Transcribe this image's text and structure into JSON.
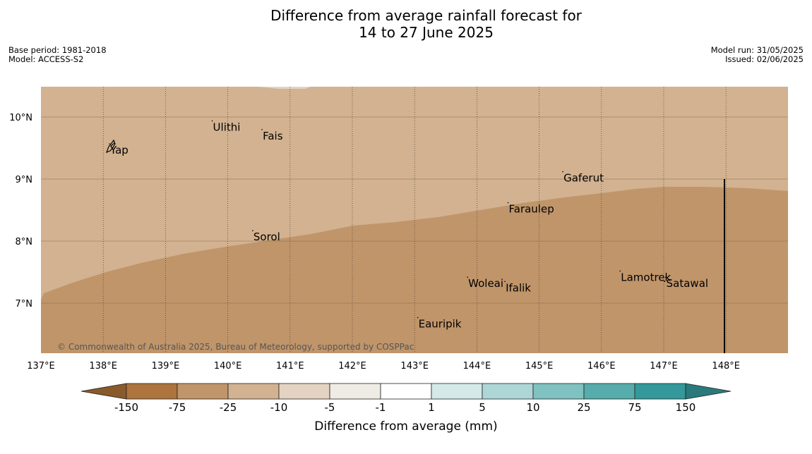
{
  "title": {
    "line1": "Difference from average rainfall forecast for",
    "line2": "14 to 27 June 2025"
  },
  "meta": {
    "base_period": "Base period: 1981-2018",
    "model": "Model: ACCESS-S2",
    "model_run": "Model run: 31/05/2025",
    "issued": "Issued: 02/06/2025"
  },
  "map": {
    "lon_range": [
      137,
      149
    ],
    "lat_range": [
      6.2,
      10.5
    ],
    "lat_ticks": [
      {
        "label": "10°N",
        "v": 10
      },
      {
        "label": "9°N",
        "v": 9
      },
      {
        "label": "8°N",
        "v": 8
      },
      {
        "label": "7°N",
        "v": 7
      }
    ],
    "lon_ticks": [
      {
        "label": "137°E",
        "v": 137
      },
      {
        "label": "138°E",
        "v": 138
      },
      {
        "label": "139°E",
        "v": 139
      },
      {
        "label": "140°E",
        "v": 140
      },
      {
        "label": "141°E",
        "v": 141
      },
      {
        "label": "142°E",
        "v": 142
      },
      {
        "label": "143°E",
        "v": 143
      },
      {
        "label": "144°E",
        "v": 144
      },
      {
        "label": "145°E",
        "v": 145
      },
      {
        "label": "146°E",
        "v": 146
      },
      {
        "label": "147°E",
        "v": 147
      },
      {
        "label": "148°E",
        "v": 148
      }
    ],
    "places": [
      {
        "name": "Ulithi",
        "lon": 139.75,
        "lat": 9.87
      },
      {
        "name": "Fais",
        "lon": 140.55,
        "lat": 9.73
      },
      {
        "name": "Yap",
        "lon": 138.1,
        "lat": 9.5
      },
      {
        "name": "Gaferut",
        "lon": 145.38,
        "lat": 9.05
      },
      {
        "name": "Faraulep",
        "lon": 144.5,
        "lat": 8.55
      },
      {
        "name": "Sorol",
        "lon": 140.4,
        "lat": 8.1
      },
      {
        "name": "Lamotrek",
        "lon": 146.3,
        "lat": 7.45
      },
      {
        "name": "Woleai",
        "lon": 143.85,
        "lat": 7.35
      },
      {
        "name": "Ifalik",
        "lon": 144.45,
        "lat": 7.28
      },
      {
        "name": "Satawal",
        "lon": 147.03,
        "lat": 7.35
      },
      {
        "name": "Eauripik",
        "lon": 143.05,
        "lat": 6.7
      }
    ],
    "copyright": "© Commonwealth of Australia 2025, Bureau of Meteorology, supported by COSPPac",
    "region_colors": {
      "minus_10_to_minus_25": "#d2b290",
      "minus_25_to_minus_75": "#c0956a"
    }
  },
  "colorbar": {
    "title": "Difference from average (mm)",
    "labels": [
      "-150",
      "-75",
      "-25",
      "-10",
      "-5",
      "-1",
      "1",
      "5",
      "10",
      "25",
      "75",
      "150"
    ],
    "colors": [
      "#8b5a2b",
      "#ad743e",
      "#c0956a",
      "#d2b290",
      "#e4d3c2",
      "#efebe5",
      "#ffffff",
      "#d4e9e8",
      "#aed6d7",
      "#80c1c1",
      "#57acac",
      "#33999a",
      "#2a7a7b"
    ]
  }
}
